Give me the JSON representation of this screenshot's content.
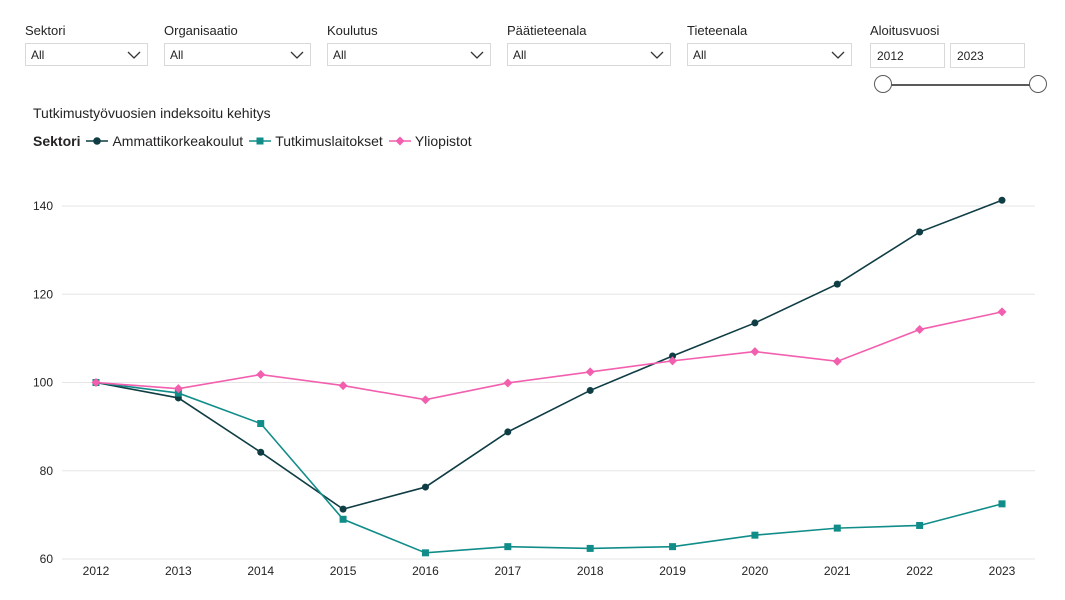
{
  "filters": [
    {
      "label": "Sektori",
      "value": "All"
    },
    {
      "label": "Organisaatio",
      "value": "All"
    },
    {
      "label": "Koulutus",
      "value": "All"
    },
    {
      "label": "Päätieteenala",
      "value": "All"
    },
    {
      "label": "Tieteenala",
      "value": "All"
    }
  ],
  "year_range": {
    "label": "Aloitusvuosi",
    "start": "2012",
    "end": "2023"
  },
  "colors": {
    "amk": "#0f3d44",
    "tutk": "#118d89",
    "yo": "#f25fae",
    "grid": "#e6e6e6"
  },
  "chart_data": {
    "type": "line",
    "title": "Tutkimustyövuosien indeksoitu kehitys",
    "legend_title": "Sektori",
    "x": [
      "2012",
      "2013",
      "2014",
      "2015",
      "2016",
      "2017",
      "2018",
      "2019",
      "2020",
      "2021",
      "2022",
      "2023"
    ],
    "ylim": [
      60,
      145
    ],
    "yticks": [
      60,
      80,
      100,
      120,
      140
    ],
    "series": [
      {
        "name": "Ammattikorkeakoulut",
        "marker": "circle",
        "values": [
          100,
          96.5,
          84.2,
          71.3,
          76.3,
          88.8,
          98.2,
          106,
          113.5,
          122.3,
          134.1,
          141.3
        ]
      },
      {
        "name": "Tutkimuslaitokset",
        "marker": "square",
        "values": [
          100,
          97.6,
          90.7,
          69,
          61.4,
          62.8,
          62.4,
          62.8,
          65.4,
          67,
          67.6,
          72.5
        ]
      },
      {
        "name": "Yliopistot",
        "marker": "diamond",
        "values": [
          100,
          98.6,
          101.8,
          99.3,
          96.1,
          99.9,
          102.4,
          104.9,
          107,
          104.8,
          112,
          116
        ]
      }
    ]
  }
}
